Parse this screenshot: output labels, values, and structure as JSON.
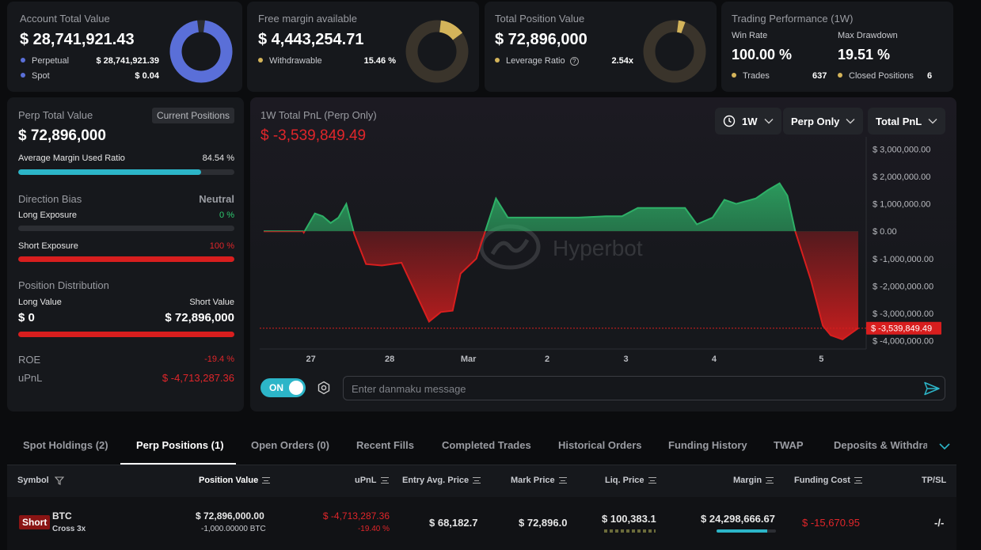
{
  "cards": {
    "account": {
      "label": "Account Total Value",
      "value": "$ 28,741,921.43",
      "rows": [
        {
          "label": "Perpetual",
          "value": "$ 28,741,921.39",
          "color": "#5a6fd8"
        },
        {
          "label": "Spot",
          "value": "$ 0.04",
          "color": "#5a6fd8"
        }
      ],
      "donut_fraction": 0.999999
    },
    "margin": {
      "label": "Free margin available",
      "value": "$ 4,443,254.71",
      "row_label": "Withdrawable",
      "row_value": "15.46 %",
      "color": "#d4b45a",
      "donut_fraction": 0.1546
    },
    "position": {
      "label": "Total Position Value",
      "value": "$ 72,896,000",
      "row_label": "Leverage Ratio",
      "row_value": "2.54x",
      "color": "#d4b45a",
      "donut_fraction": 0.04
    },
    "performance": {
      "label": "Trading Performance (1W)",
      "win_rate_label": "Win Rate",
      "win_rate": "100.00 %",
      "drawdown_label": "Max Drawdown",
      "drawdown": "19.51 %",
      "trades_label": "Trades",
      "trades": "637",
      "closed_label": "Closed Positions",
      "closed": "6",
      "color": "#d4b45a"
    }
  },
  "perp": {
    "title": "Perp Total Value",
    "badge": "Current Positions",
    "value": "$ 72,896,000",
    "amur_label": "Average Margin Used Ratio",
    "amur_value": "84.54 %",
    "amur_fraction": 0.8454,
    "bias_label": "Direction Bias",
    "bias_value": "Neutral",
    "long_exp_label": "Long Exposure",
    "long_exp_value": "0 %",
    "short_exp_label": "Short Exposure",
    "short_exp_value": "100 %",
    "short_fraction": 1.0,
    "dist_label": "Position Distribution",
    "long_value_label": "Long Value",
    "short_value_label": "Short Value",
    "long_value": "$ 0",
    "short_value": "$ 72,896,000",
    "roe_label": "ROE",
    "roe_value": "-19.4 %",
    "upnl_label": "uPnL",
    "upnl_value": "$ -4,713,287.36",
    "accent": "#2cb5c8",
    "red": "#d81e1e"
  },
  "chart_panel": {
    "title": "1W Total PnL (Perp Only)",
    "value": "$ -3,539,849.49",
    "dropdown_period": "1W",
    "dropdown_scope": "Perp Only",
    "dropdown_metric": "Total PnL",
    "watermark": "Hyperbot",
    "current_label": "$ -3,539,849.49",
    "toggle_label": "ON",
    "danmaku_placeholder": "Enter danmaku message"
  },
  "chart_data": {
    "type": "area",
    "title": "1W Total PnL (Perp Only)",
    "ylim": [
      -4300000,
      3300000
    ],
    "y_ticks": [
      3000000,
      2000000,
      1000000,
      0,
      -1000000,
      -2000000,
      -3000000,
      -4000000
    ],
    "y_tick_labels": [
      "$ 3,000,000.00",
      "$ 2,000,000.00",
      "$ 1,000,000.00",
      "$ 0.00",
      "$ -1,000,000.00",
      "$ -2,000,000.00",
      "$ -3,000,000.00",
      "$ -4,000,000.00"
    ],
    "x_ticks": [
      {
        "t": 0.6,
        "label": "27"
      },
      {
        "t": 1.6,
        "label": "28"
      },
      {
        "t": 2.6,
        "label": "Mar"
      },
      {
        "t": 3.6,
        "label": "2"
      },
      {
        "t": 4.6,
        "label": "3"
      },
      {
        "t": 5.72,
        "label": "4"
      },
      {
        "t": 7.08,
        "label": "5"
      }
    ],
    "x": [
      0,
      0.5,
      0.51,
      0.65,
      0.75,
      0.85,
      0.95,
      1.05,
      1.15,
      1.3,
      1.5,
      1.75,
      2.1,
      2.25,
      2.4,
      2.5,
      2.7,
      2.95,
      3.1,
      3.3,
      3.6,
      4,
      4.35,
      4.55,
      4.75,
      5,
      5.35,
      5.5,
      5.7,
      5.85,
      6,
      6.25,
      6.4,
      6.55,
      6.65,
      6.75,
      6.95,
      7.1,
      7.2,
      7.35,
      7.55
    ],
    "y": [
      0,
      0,
      -50000,
      650000,
      550000,
      300000,
      500000,
      1000000,
      -100000,
      -1200000,
      -1250000,
      -1150000,
      -3300000,
      -2950000,
      -2900000,
      -1550000,
      -1000000,
      1200000,
      500000,
      500000,
      500000,
      500000,
      550000,
      550000,
      850000,
      850000,
      850000,
      250000,
      500000,
      1150000,
      1000000,
      1200000,
      1500000,
      1750000,
      1300000,
      0,
      -1800000,
      -3450000,
      -3800000,
      -3950000,
      -3539849.49
    ],
    "positive_color": "#2eb067",
    "negative_color": "#d81e1e",
    "xlabel": "",
    "ylabel": ""
  },
  "tabs": [
    "Spot Holdings (2)",
    "Perp Positions (1)",
    "Open Orders (0)",
    "Recent Fills",
    "Completed Trades",
    "Historical Orders",
    "Funding History",
    "TWAP",
    "Deposits & Withdraw"
  ],
  "table": {
    "headers": [
      "Symbol",
      "Position Value",
      "uPnL",
      "Entry Avg. Price",
      "Mark Price",
      "Liq. Price",
      "Margin",
      "Funding Cost",
      "TP/SL"
    ],
    "row": {
      "side": "Short",
      "symbol": "BTC",
      "mode": "Cross 3x",
      "position_value": "$ 72,896,000.00",
      "position_size": "-1,000.00000 BTC",
      "upnl": "$ -4,713,287.36",
      "upnl_pct": "-19.40 %",
      "entry": "$ 68,182.7",
      "mark": "$ 72,896.0",
      "liq": "$ 100,383.1",
      "margin": "$ 24,298,666.67",
      "margin_fraction": 0.85,
      "funding": "$ -15,670.95",
      "tpsl": "-/-"
    }
  }
}
